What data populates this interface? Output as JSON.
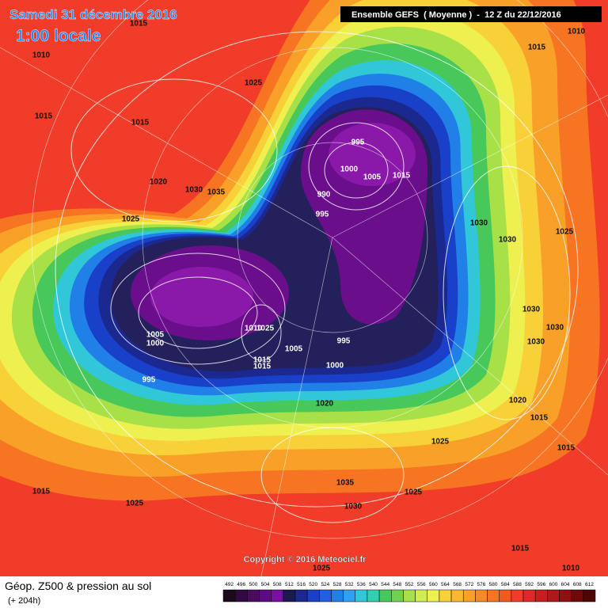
{
  "header": {
    "date": "Samedi 31 décembre 2016",
    "time": "1:00 locale",
    "run": "Ensemble GEFS  ( Moyenne )  -  12 Z du 22/12/2016"
  },
  "copyright": "Copyright © 2016 Meteociel.fr",
  "footer": {
    "title": "Géop. Z500 & pression au sol",
    "lead": "(+ 204h)"
  },
  "scale": [
    492,
    496,
    500,
    504,
    508,
    512,
    516,
    520,
    524,
    528,
    532,
    536,
    540,
    544,
    548,
    552,
    556,
    560,
    564,
    568,
    572,
    576,
    580,
    584,
    588,
    592,
    596,
    600,
    604,
    608,
    612
  ],
  "pressure_labels": [
    1015,
    1010,
    1015,
    1015,
    1025,
    1020,
    1030,
    1035,
    1025,
    995,
    1000,
    1005,
    1015,
    990,
    995,
    1030,
    1030,
    1025,
    1010,
    1015,
    1030,
    1030,
    1030,
    1020,
    1015,
    1015,
    1025,
    1025,
    1035,
    1030,
    1015,
    1010,
    1025,
    1015,
    1025,
    1020,
    1005,
    1000,
    995,
    1010,
    1025,
    1005,
    995,
    1000,
    1015,
    1015
  ]
}
